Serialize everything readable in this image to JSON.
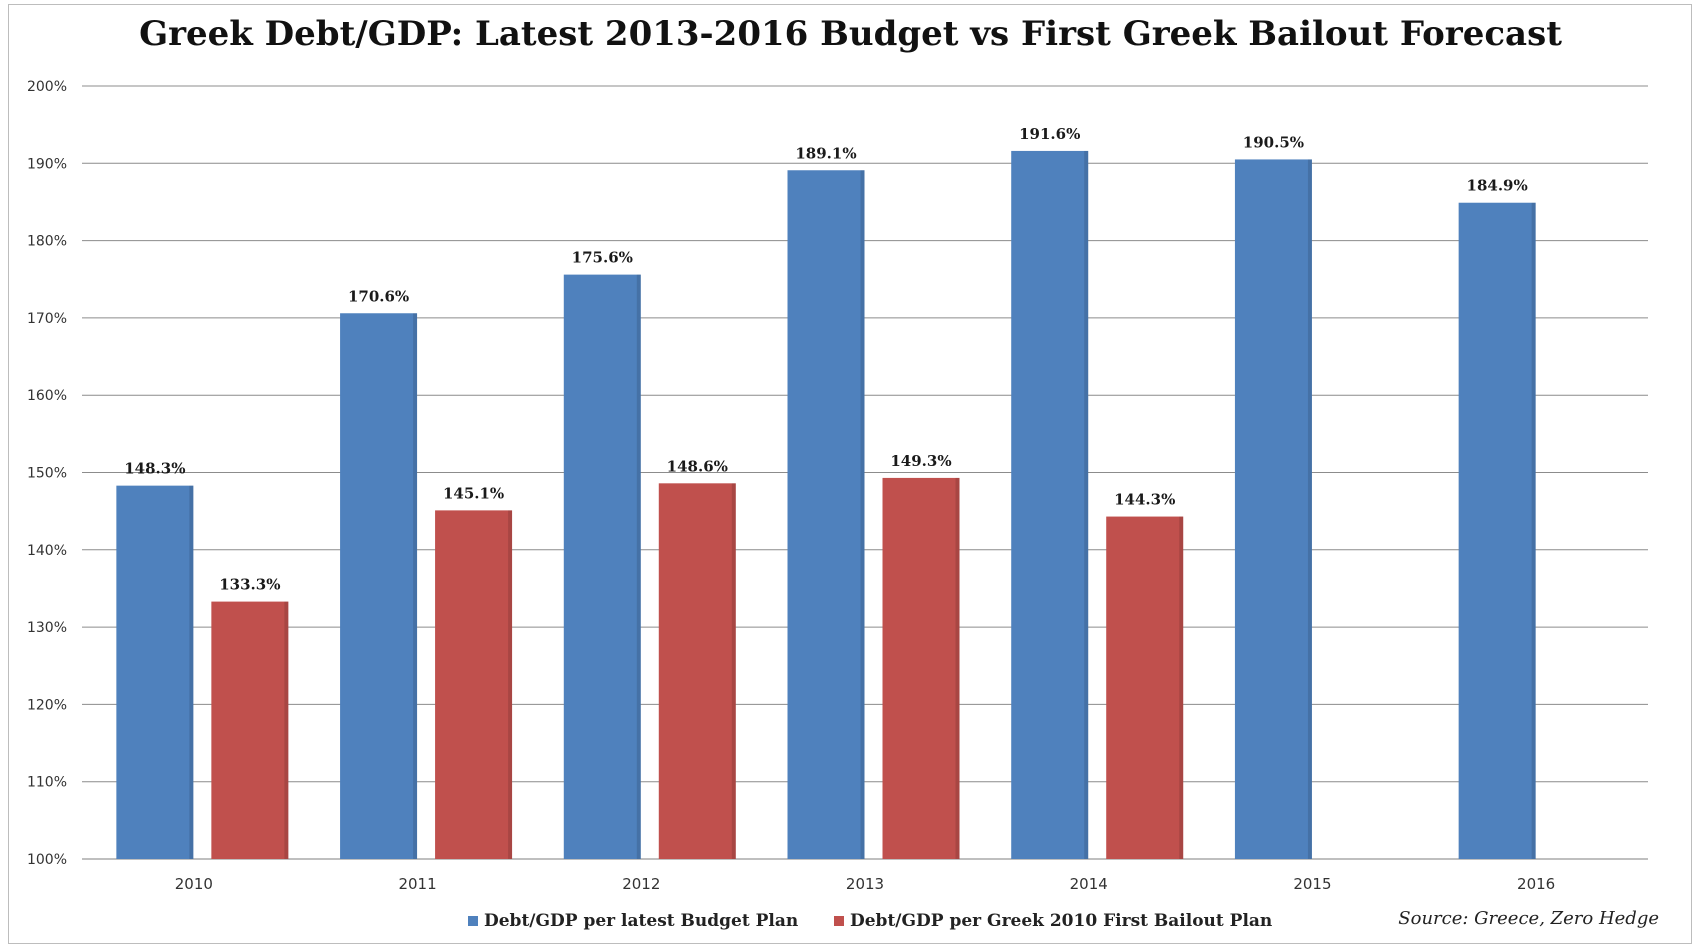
{
  "chart_data": {
    "type": "bar",
    "title": "Greek Debt/GDP: Latest 2013-2016 Budget vs First Greek Bailout Forecast",
    "categories": [
      "2010",
      "2011",
      "2012",
      "2013",
      "2014",
      "2015",
      "2016"
    ],
    "series": [
      {
        "name": "Debt/GDP per latest Budget Plan",
        "color": "#4F81BD",
        "values": [
          148.3,
          170.6,
          175.6,
          189.1,
          191.6,
          190.5,
          184.9
        ],
        "labels": [
          "148.3%",
          "170.6%",
          "175.6%",
          "189.1%",
          "191.6%",
          "190.5%",
          "184.9%"
        ]
      },
      {
        "name": "Debt/GDP per Greek 2010 First Bailout Plan",
        "color": "#C0504D",
        "values": [
          133.3,
          145.1,
          148.6,
          149.3,
          144.3,
          null,
          null
        ],
        "labels": [
          "133.3%",
          "145.1%",
          "148.6%",
          "149.3%",
          "144.3%",
          "",
          ""
        ]
      }
    ],
    "ylim": [
      100,
      200
    ],
    "y_ticks": [
      "100%",
      "110%",
      "120%",
      "130%",
      "140%",
      "150%",
      "160%",
      "170%",
      "180%",
      "190%",
      "200%"
    ],
    "xlabel": "",
    "ylabel": "",
    "grid": true,
    "legend_position": "bottom",
    "source": "Source: Greece, Zero Hedge"
  }
}
